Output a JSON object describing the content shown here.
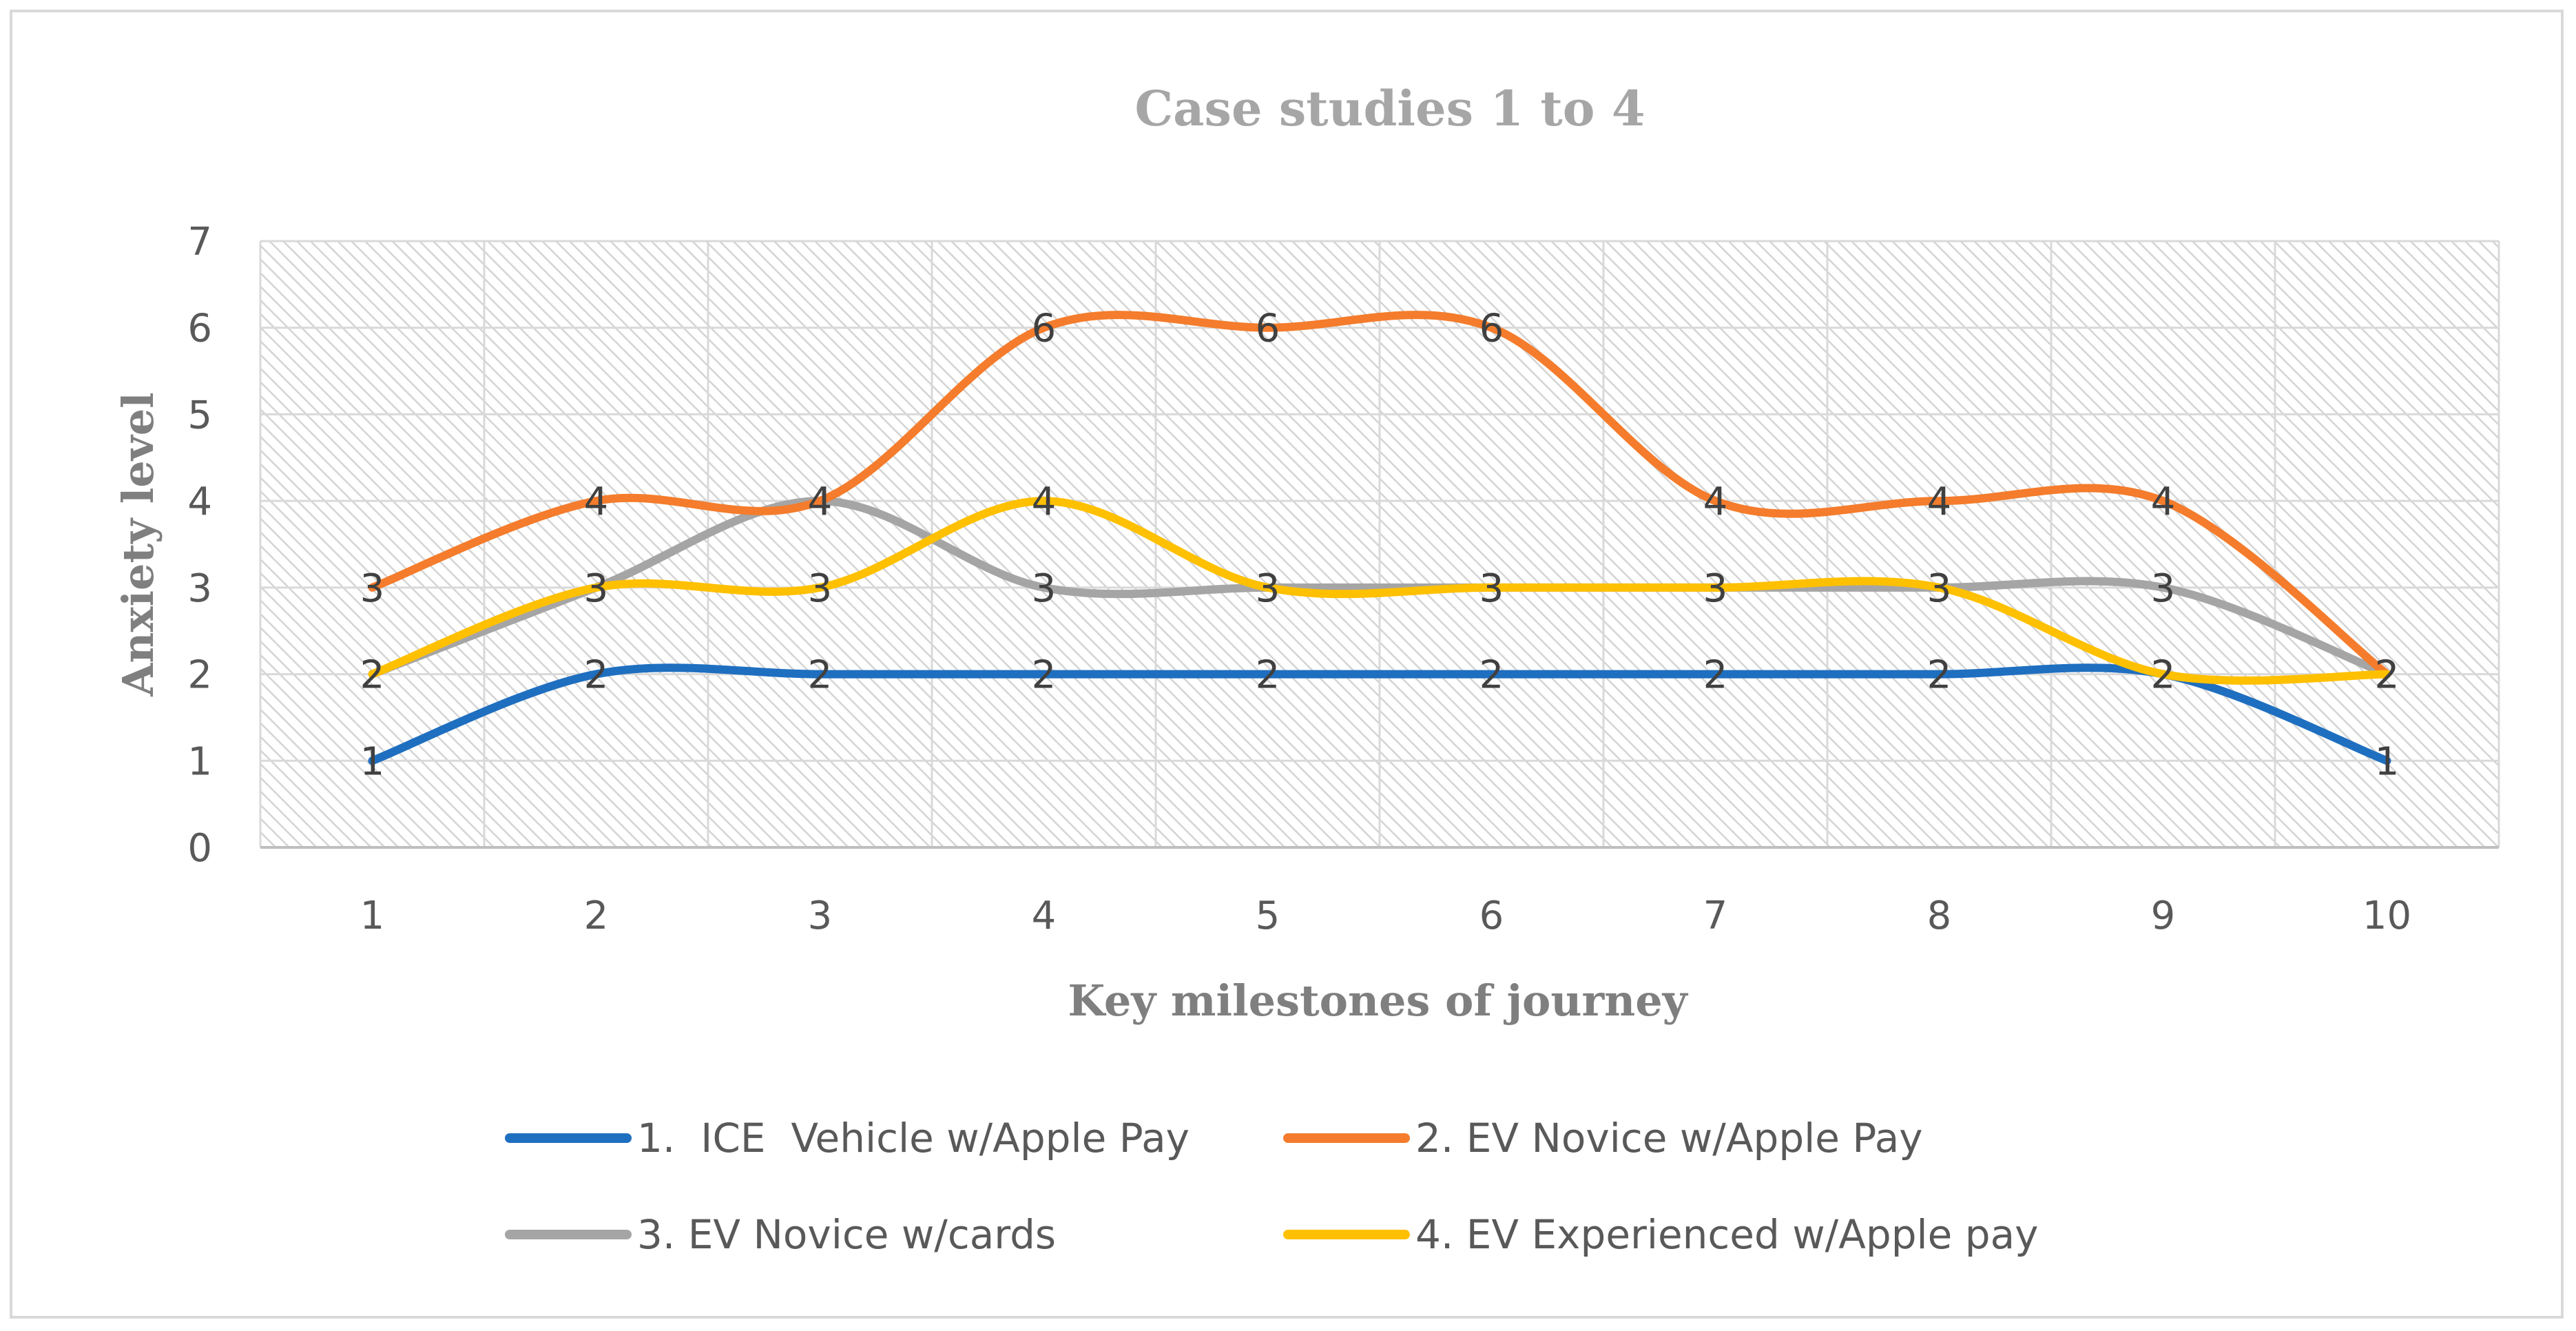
{
  "chart_data": {
    "type": "line",
    "smooth": true,
    "title": "Case studies 1 to 4",
    "xlabel": "Key milestones of journey",
    "ylabel": "Anxiety level",
    "categories": [
      "1",
      "2",
      "3",
      "4",
      "5",
      "6",
      "7",
      "8",
      "9",
      "10"
    ],
    "ylim": [
      0,
      7
    ],
    "yticks": [
      "0",
      "1",
      "2",
      "3",
      "4",
      "5",
      "6",
      "7"
    ],
    "grid": true,
    "legend_position": "bottom",
    "series": [
      {
        "name": "1.  ICE  Vehicle w/Apple Pay",
        "color": "#1f6fc0",
        "values": [
          1,
          2,
          2,
          2,
          2,
          2,
          2,
          2,
          2,
          1
        ]
      },
      {
        "name": "2. EV Novice w/Apple Pay",
        "color": "#f47c2c",
        "values": [
          3,
          4,
          4,
          6,
          6,
          6,
          4,
          4,
          4,
          2
        ]
      },
      {
        "name": "3. EV Novice w/cards",
        "color": "#a5a5a5",
        "values": [
          2,
          3,
          4,
          3,
          3,
          3,
          3,
          3,
          3,
          2
        ]
      },
      {
        "name": "4. EV Experienced w/Apple pay",
        "color": "#ffc000",
        "values": [
          2,
          3,
          3,
          4,
          3,
          3,
          3,
          3,
          2,
          2
        ]
      }
    ]
  }
}
